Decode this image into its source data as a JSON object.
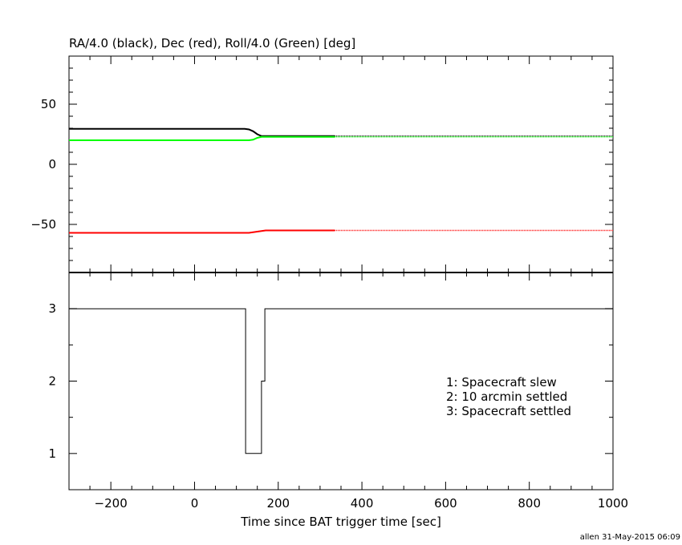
{
  "chart_data": [
    {
      "type": "line",
      "title": "RA/4.0 (black), Dec (red), Roll/4.0 (Green) [deg]",
      "xlim": [
        -300,
        1000
      ],
      "ylim": [
        -90,
        90
      ],
      "yticks": [
        -50,
        0,
        50
      ],
      "series": [
        {
          "color": "#000000",
          "x": [
            -300,
            120,
            130,
            140,
            150,
            160,
            335
          ],
          "y": [
            29.5,
            29.5,
            29,
            27.5,
            25,
            23.5,
            23.5
          ],
          "continuation": {
            "x": [
              335,
              1000
            ],
            "y": [
              23.5,
              23.5
            ],
            "style": "dotted"
          }
        },
        {
          "color": "#ff0000",
          "x": [
            -300,
            130,
            140,
            150,
            160,
            170,
            335
          ],
          "y": [
            -57,
            -57,
            -56.5,
            -56,
            -55.5,
            -55,
            -55
          ],
          "continuation": {
            "x": [
              335,
              1000
            ],
            "y": [
              -55,
              -55
            ],
            "style": "dotted"
          }
        },
        {
          "color": "#00ff00",
          "x": [
            -300,
            130,
            140,
            150,
            160,
            335
          ],
          "y": [
            20,
            20,
            20.5,
            22,
            22.8,
            22.8
          ],
          "continuation": {
            "x": [
              335,
              1000
            ],
            "y": [
              22.8,
              22.8
            ],
            "style": "dotted"
          }
        }
      ]
    },
    {
      "type": "line",
      "xlabel": "Time since BAT trigger time [sec]",
      "xlim": [
        -300,
        1000
      ],
      "ylim": [
        0.5,
        3.5
      ],
      "xticks": [
        -200,
        0,
        200,
        400,
        600,
        800,
        1000
      ],
      "yticks": [
        1,
        2,
        3
      ],
      "series": [
        {
          "color": "#000000",
          "step": true,
          "x": [
            -300,
            122,
            122,
            160,
            160,
            168,
            168,
            1000
          ],
          "y": [
            3,
            3,
            1,
            1,
            2,
            2,
            3,
            3
          ]
        }
      ],
      "legend": {
        "position": "right",
        "items": [
          "1: Spacecraft slew",
          "2: 10 arcmin settled",
          "3: Spacecraft settled"
        ]
      }
    }
  ],
  "footer": "allen 31-May-2015 06:09"
}
